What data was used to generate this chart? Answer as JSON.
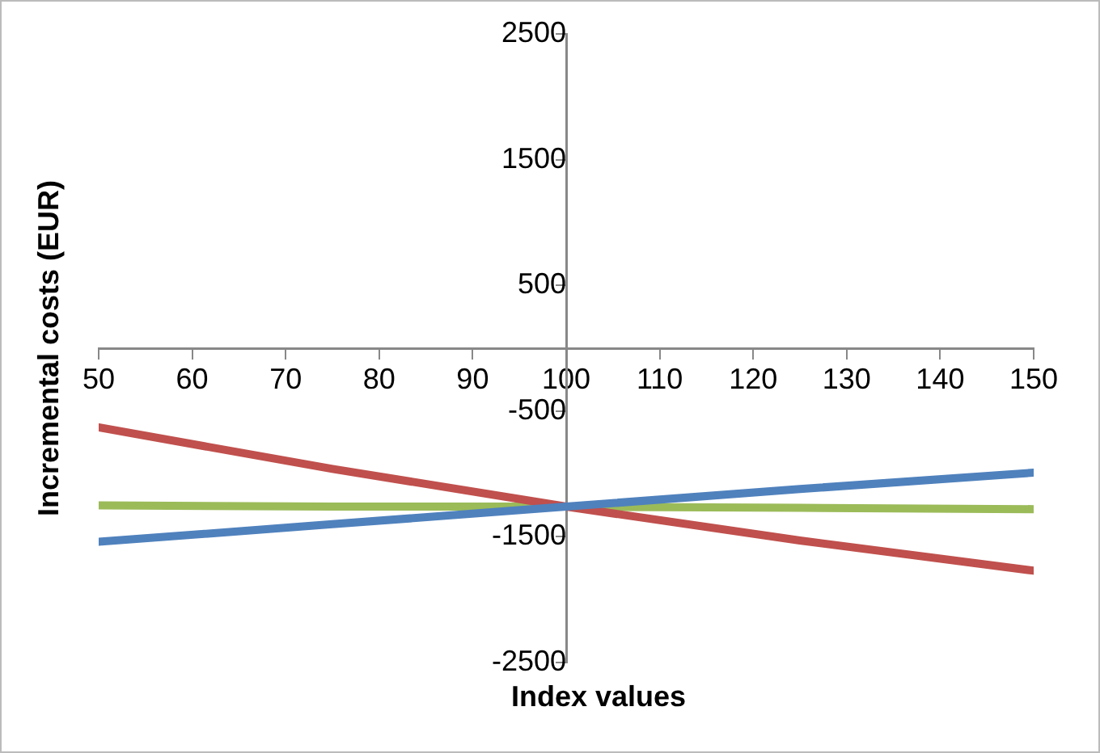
{
  "chart_data": {
    "type": "line",
    "xlabel": "Index values",
    "ylabel": "Incremental costs (EUR)",
    "x": [
      50,
      75,
      100,
      125,
      150
    ],
    "series": [
      {
        "color": "#4f81bd",
        "values": [
          -1540,
          -1400,
          -1260,
          -1120,
          -990
        ]
      },
      {
        "color": "#c0504d",
        "values": [
          -630,
          -960,
          -1260,
          -1530,
          -1770
        ]
      },
      {
        "color": "#9bbb59",
        "values": [
          -1250,
          -1260,
          -1260,
          -1270,
          -1280
        ]
      }
    ],
    "xlim": [
      50,
      150
    ],
    "xticks": [
      50,
      60,
      70,
      80,
      90,
      100,
      110,
      120,
      130,
      140,
      150
    ],
    "ylim": [
      -2500,
      2500
    ],
    "yticks": [
      -2500,
      -1500,
      -500,
      500,
      1500,
      2500
    ],
    "grid": false,
    "legend": false,
    "marker": "none",
    "line_style": "solid"
  }
}
